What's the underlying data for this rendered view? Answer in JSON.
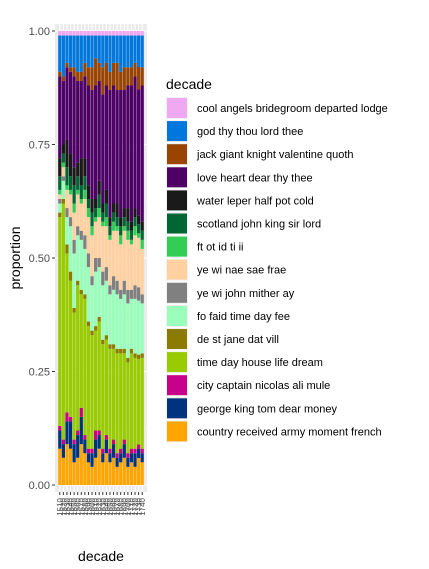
{
  "chart_data": {
    "type": "bar",
    "stacked": true,
    "xlabel": "decade",
    "ylabel": "proportion",
    "ylim": [
      0,
      1
    ],
    "yticks": [
      "0.00",
      "0.25",
      "0.50",
      "0.75",
      "1.00"
    ],
    "legend_title": "decade",
    "legend_position": "right",
    "grid": true,
    "categories": [
      "1510",
      "1520",
      "1530",
      "1540",
      "1550",
      "1560",
      "1570",
      "1580",
      "1590",
      "1600",
      "1610",
      "1620",
      "1630",
      "1640",
      "1650",
      "1660",
      "1670",
      "1680",
      "1690",
      "1700",
      "1710",
      "1720",
      "1730",
      "1740"
    ],
    "series": [
      {
        "name": "country received army moment french",
        "color": "#FFA500",
        "values": [
          0.08,
          0.06,
          0.09,
          0.08,
          0.05,
          0.06,
          0.09,
          0.07,
          0.05,
          0.04,
          0.06,
          0.08,
          0.05,
          0.07,
          0.05,
          0.06,
          0.04,
          0.05,
          0.06,
          0.04,
          0.05,
          0.04,
          0.06,
          0.05
        ]
      },
      {
        "name": "george king tom dear money",
        "color": "#00337F",
        "values": [
          0.04,
          0.03,
          0.05,
          0.06,
          0.04,
          0.05,
          0.06,
          0.03,
          0.02,
          0.03,
          0.04,
          0.03,
          0.02,
          0.03,
          0.02,
          0.03,
          0.02,
          0.02,
          0.03,
          0.02,
          0.02,
          0.03,
          0.02,
          0.02
        ]
      },
      {
        "name": "city captain nicolas ali mule",
        "color": "#C8008A",
        "values": [
          0.01,
          0.01,
          0.02,
          0.01,
          0.01,
          0.01,
          0.02,
          0.01,
          0.01,
          0.01,
          0.02,
          0.01,
          0.01,
          0.01,
          0.01,
          0.01,
          0.01,
          0.01,
          0.01,
          0.01,
          0.01,
          0.01,
          0.01,
          0.01
        ]
      },
      {
        "name": "time day house life dream",
        "color": "#99CC00",
        "values": [
          0.46,
          0.52,
          0.35,
          0.3,
          0.28,
          0.32,
          0.25,
          0.3,
          0.27,
          0.25,
          0.22,
          0.24,
          0.23,
          0.21,
          0.22,
          0.2,
          0.22,
          0.21,
          0.19,
          0.2,
          0.21,
          0.2,
          0.19,
          0.2
        ]
      },
      {
        "name": "de st jane dat vill",
        "color": "#8B7B00",
        "values": [
          0.01,
          0.01,
          0.02,
          0.02,
          0.01,
          0.01,
          0.01,
          0.01,
          0.01,
          0.01,
          0.01,
          0.01,
          0.01,
          0.01,
          0.01,
          0.01,
          0.01,
          0.01,
          0.01,
          0.01,
          0.01,
          0.01,
          0.01,
          0.01
        ]
      },
      {
        "name": "fo faid time day fee",
        "color": "#99FFBB",
        "values": [
          0.02,
          0.04,
          0.06,
          0.1,
          0.12,
          0.1,
          0.11,
          0.1,
          0.12,
          0.1,
          0.12,
          0.11,
          0.12,
          0.12,
          0.11,
          0.12,
          0.12,
          0.11,
          0.12,
          0.12,
          0.11,
          0.12,
          0.12,
          0.11
        ]
      },
      {
        "name": "ye wi john mither ay",
        "color": "#808080",
        "values": [
          0.01,
          0.01,
          0.02,
          0.02,
          0.03,
          0.02,
          0.02,
          0.03,
          0.03,
          0.02,
          0.03,
          0.02,
          0.03,
          0.03,
          0.02,
          0.03,
          0.03,
          0.02,
          0.03,
          0.03,
          0.02,
          0.03,
          0.03,
          0.02
        ]
      },
      {
        "name": "ye wi nae sae frae",
        "color": "#FFD1A0",
        "values": [
          0.01,
          0.02,
          0.04,
          0.05,
          0.06,
          0.07,
          0.06,
          0.08,
          0.08,
          0.09,
          0.08,
          0.09,
          0.1,
          0.09,
          0.1,
          0.1,
          0.11,
          0.1,
          0.11,
          0.11,
          0.1,
          0.11,
          0.11,
          0.1
        ]
      },
      {
        "name": "ft ot id ti ii",
        "color": "#33CC55",
        "values": [
          0.01,
          0.01,
          0.01,
          0.01,
          0.02,
          0.01,
          0.01,
          0.02,
          0.02,
          0.02,
          0.01,
          0.02,
          0.01,
          0.02,
          0.01,
          0.02,
          0.01,
          0.02,
          0.01,
          0.02,
          0.01,
          0.02,
          0.01,
          0.02
        ]
      },
      {
        "name": "scotland john king sir lord",
        "color": "#006633",
        "values": [
          0.03,
          0.02,
          0.04,
          0.03,
          0.04,
          0.03,
          0.03,
          0.03,
          0.02,
          0.03,
          0.02,
          0.03,
          0.02,
          0.03,
          0.02,
          0.02,
          0.02,
          0.02,
          0.02,
          0.02,
          0.02,
          0.02,
          0.02,
          0.02
        ]
      },
      {
        "name": "water leper half pot cold",
        "color": "#1A1A1A",
        "values": [
          0.04,
          0.02,
          0.06,
          0.05,
          0.04,
          0.03,
          0.06,
          0.04,
          0.03,
          0.03,
          0.02,
          0.03,
          0.02,
          0.03,
          0.02,
          0.02,
          0.03,
          0.02,
          0.02,
          0.03,
          0.02,
          0.02,
          0.02,
          0.02
        ]
      },
      {
        "name": "love heart dear thy thee",
        "color": "#4D0066",
        "values": [
          0.18,
          0.14,
          0.16,
          0.18,
          0.2,
          0.18,
          0.17,
          0.18,
          0.22,
          0.24,
          0.25,
          0.22,
          0.24,
          0.23,
          0.28,
          0.26,
          0.25,
          0.28,
          0.26,
          0.27,
          0.3,
          0.29,
          0.28,
          0.3
        ]
      },
      {
        "name": "jack giant knight valentine quoth",
        "color": "#994400",
        "values": [
          0.01,
          0.01,
          0.01,
          0.01,
          0.02,
          0.02,
          0.02,
          0.03,
          0.04,
          0.05,
          0.06,
          0.04,
          0.06,
          0.05,
          0.04,
          0.05,
          0.06,
          0.04,
          0.05,
          0.04,
          0.04,
          0.03,
          0.05,
          0.04
        ]
      },
      {
        "name": "god thy thou lord thee",
        "color": "#0077DD",
        "values": [
          0.08,
          0.09,
          0.06,
          0.07,
          0.07,
          0.08,
          0.08,
          0.06,
          0.07,
          0.07,
          0.05,
          0.06,
          0.07,
          0.06,
          0.08,
          0.06,
          0.06,
          0.08,
          0.07,
          0.07,
          0.07,
          0.06,
          0.07,
          0.07
        ]
      },
      {
        "name": "cool angels bridegroom departed lodge",
        "color": "#F0A8F0",
        "values": [
          0.01,
          0.01,
          0.01,
          0.01,
          0.01,
          0.01,
          0.01,
          0.01,
          0.01,
          0.01,
          0.01,
          0.01,
          0.01,
          0.01,
          0.01,
          0.01,
          0.01,
          0.01,
          0.01,
          0.01,
          0.01,
          0.01,
          0.01,
          0.01
        ]
      }
    ]
  }
}
